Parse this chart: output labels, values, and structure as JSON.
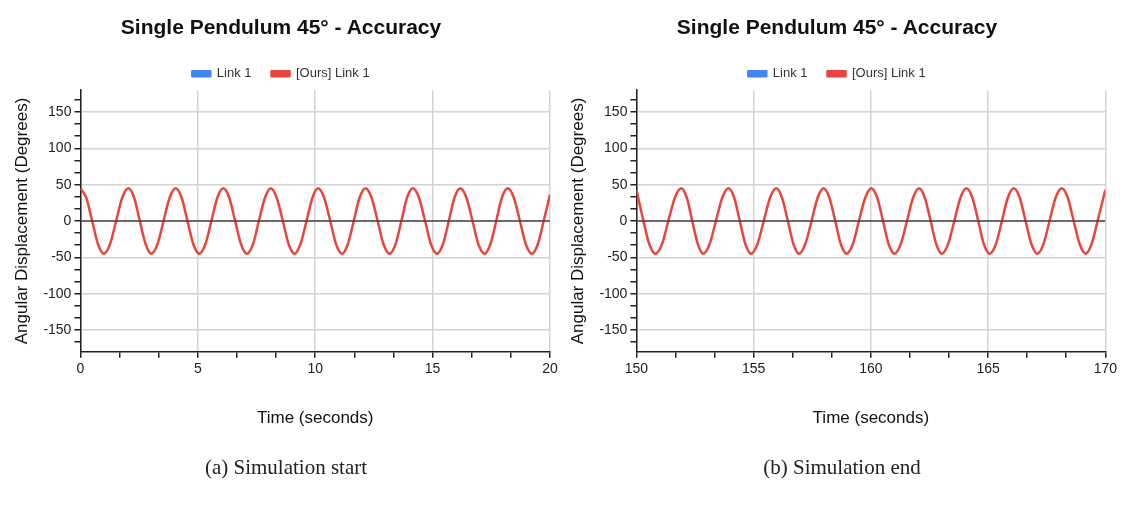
{
  "chart_data": [
    {
      "type": "line",
      "title": "Single Pendulum 45° - Accuracy",
      "xlabel": "Time (seconds)",
      "ylabel": "Angular Displacement (Degrees)",
      "annotations": [
        "(a) Simulation start"
      ],
      "legend": "top",
      "grid": true,
      "marker": "none",
      "line_style": "solid",
      "xlim": [
        0,
        20
      ],
      "ylim": [
        -180,
        180
      ],
      "xticks": [
        0,
        {
          "value": 1.67,
          "label": null
        },
        {
          "value": 3.33,
          "label": null
        },
        5,
        {
          "value": 6.67,
          "label": null
        },
        {
          "value": 8.33,
          "label": null
        },
        10,
        {
          "value": 11.67,
          "label": null
        },
        {
          "value": 13.33,
          "label": null
        },
        15,
        {
          "value": 16.67,
          "label": null
        },
        {
          "value": 18.33,
          "label": null
        },
        20
      ],
      "yticks": [
        {
          "value": -166.67,
          "label": null
        },
        -150,
        {
          "value": -133.33,
          "label": null
        },
        {
          "value": -116.67,
          "label": null
        },
        -100,
        {
          "value": -83.33,
          "label": null
        },
        {
          "value": -66.67,
          "label": null
        },
        -50,
        {
          "value": -33.33,
          "label": null
        },
        {
          "value": -16.67,
          "label": null
        },
        0,
        {
          "value": 16.67,
          "label": null
        },
        {
          "value": 33.33,
          "label": null
        },
        50,
        {
          "value": 66.67,
          "label": null
        },
        {
          "value": 83.33,
          "label": null
        },
        100,
        {
          "value": 116.67,
          "label": null
        },
        {
          "value": 133.33,
          "label": null
        },
        150,
        {
          "value": 166.67,
          "label": null
        }
      ],
      "ref_lines": [
        {
          "axis": "y",
          "value": 0,
          "color": "#444444"
        }
      ],
      "series": [
        {
          "name": "Link 1",
          "color": "#4285f4"
        },
        {
          "name": "[Ours] Link 1",
          "color": "#e8453c",
          "x": [
            0,
            0.25,
            0.5,
            0.75,
            1.0,
            1.26,
            1.52,
            1.78,
            2.04,
            2.29,
            2.53,
            2.78,
            3.02,
            3.28,
            3.54,
            3.8,
            4.06,
            4.31,
            4.56,
            4.81,
            5.06,
            5.32,
            5.58,
            5.83,
            6.09,
            6.34,
            6.59,
            6.84,
            7.09,
            7.35,
            7.6,
            7.86,
            8.11,
            8.36,
            8.62,
            8.87,
            9.12,
            9.37,
            9.63,
            9.88,
            10.13,
            10.38,
            10.64,
            10.89,
            11.14,
            11.39,
            11.64,
            11.89,
            12.14,
            12.4,
            12.66,
            12.91,
            13.17,
            13.42,
            13.67,
            13.91,
            14.16,
            14.42,
            14.68,
            14.93,
            15.19,
            15.44,
            15.69,
            15.93,
            16.18,
            16.44,
            16.7,
            16.95,
            17.21,
            17.46,
            17.71,
            17.95,
            18.2,
            18.46,
            18.72,
            18.97,
            19.23,
            19.48,
            19.73,
            20
          ],
          "values": [
            45,
            32,
            0,
            -32,
            -45,
            -32,
            0,
            32,
            45,
            32,
            0,
            -32,
            -45,
            -32,
            0,
            32,
            45,
            32,
            0,
            -32,
            -45,
            -32,
            0,
            32,
            45,
            32,
            0,
            -32,
            -45,
            -32,
            0,
            32,
            45,
            32,
            0,
            -32,
            -45,
            -32,
            0,
            32,
            45,
            32,
            0,
            -32,
            -45,
            -32,
            0,
            32,
            45,
            32,
            0,
            -32,
            -45,
            -32,
            0,
            32,
            45,
            32,
            0,
            -32,
            -45,
            -32,
            0,
            32,
            45,
            32,
            0,
            -32,
            -45,
            -32,
            0,
            32,
            45,
            32,
            0,
            -32,
            -45,
            -32,
            0,
            36
          ]
        }
      ]
    },
    {
      "type": "line",
      "title": "Single Pendulum 45° - Accuracy",
      "xlabel": "Time (seconds)",
      "ylabel": "Angular Displacement (Degrees)",
      "annotations": [
        "(b) Simulation end"
      ],
      "legend": "top",
      "grid": true,
      "marker": "none",
      "line_style": "solid",
      "xlim": [
        150,
        170
      ],
      "ylim": [
        -180,
        180
      ],
      "xticks": [
        150,
        {
          "value": 151.67,
          "label": null
        },
        {
          "value": 153.33,
          "label": null
        },
        155,
        {
          "value": 156.67,
          "label": null
        },
        {
          "value": 158.33,
          "label": null
        },
        160,
        {
          "value": 161.67,
          "label": null
        },
        {
          "value": 163.33,
          "label": null
        },
        165,
        {
          "value": 166.67,
          "label": null
        },
        {
          "value": 168.33,
          "label": null
        },
        170
      ],
      "yticks": [
        {
          "value": -166.67,
          "label": null
        },
        -150,
        {
          "value": -133.33,
          "label": null
        },
        {
          "value": -116.67,
          "label": null
        },
        -100,
        {
          "value": -83.33,
          "label": null
        },
        {
          "value": -66.67,
          "label": null
        },
        -50,
        {
          "value": -33.33,
          "label": null
        },
        {
          "value": -16.67,
          "label": null
        },
        0,
        {
          "value": 16.67,
          "label": null
        },
        {
          "value": 33.33,
          "label": null
        },
        50,
        {
          "value": 66.67,
          "label": null
        },
        {
          "value": 83.33,
          "label": null
        },
        100,
        {
          "value": 116.67,
          "label": null
        },
        {
          "value": 133.33,
          "label": null
        },
        150,
        {
          "value": 166.67,
          "label": null
        }
      ],
      "ref_lines": [
        {
          "axis": "y",
          "value": 0,
          "color": "#444444"
        }
      ],
      "series": [
        {
          "name": "Link 1",
          "color": "#4285f4"
        },
        {
          "name": "[Ours] Link 1",
          "color": "#e8453c",
          "x": [
            150,
            150.3,
            150.55,
            150.81,
            151.09,
            151.36,
            151.64,
            151.91,
            152.15,
            152.38,
            152.62,
            152.85,
            153.12,
            153.39,
            153.66,
            153.93,
            154.17,
            154.41,
            154.65,
            154.89,
            155.16,
            155.43,
            155.7,
            155.97,
            156.21,
            156.46,
            156.7,
            156.94,
            157.2,
            157.47,
            157.73,
            157.99,
            158.23,
            158.48,
            158.72,
            158.96,
            159.23,
            159.49,
            159.76,
            160.02,
            160.27,
            160.52,
            160.76,
            161.01,
            161.27,
            161.54,
            161.8,
            162.06,
            162.3,
            162.55,
            162.79,
            163.03,
            163.29,
            163.56,
            163.82,
            164.08,
            164.33,
            164.58,
            164.82,
            165.07,
            165.33,
            165.59,
            165.84,
            166.1,
            166.35,
            166.6,
            166.85,
            167.1,
            167.36,
            167.62,
            167.88,
            168.14,
            168.4,
            168.65,
            168.91,
            169.16,
            169.41,
            169.67,
            170
          ],
          "values": [
            43,
            0,
            -32,
            -45,
            -32,
            0,
            32,
            45,
            32,
            0,
            -32,
            -45,
            -32,
            0,
            32,
            45,
            32,
            0,
            -32,
            -45,
            -32,
            0,
            32,
            45,
            32,
            0,
            -32,
            -45,
            -32,
            0,
            32,
            45,
            32,
            0,
            -32,
            -45,
            -32,
            0,
            32,
            45,
            32,
            0,
            -32,
            -45,
            -32,
            0,
            32,
            45,
            32,
            0,
            -32,
            -45,
            -32,
            0,
            32,
            45,
            32,
            0,
            -32,
            -45,
            -32,
            0,
            32,
            45,
            32,
            0,
            -32,
            -45,
            -32,
            0,
            32,
            45,
            32,
            0,
            -32,
            -45,
            -32,
            0,
            43
          ]
        }
      ]
    }
  ]
}
